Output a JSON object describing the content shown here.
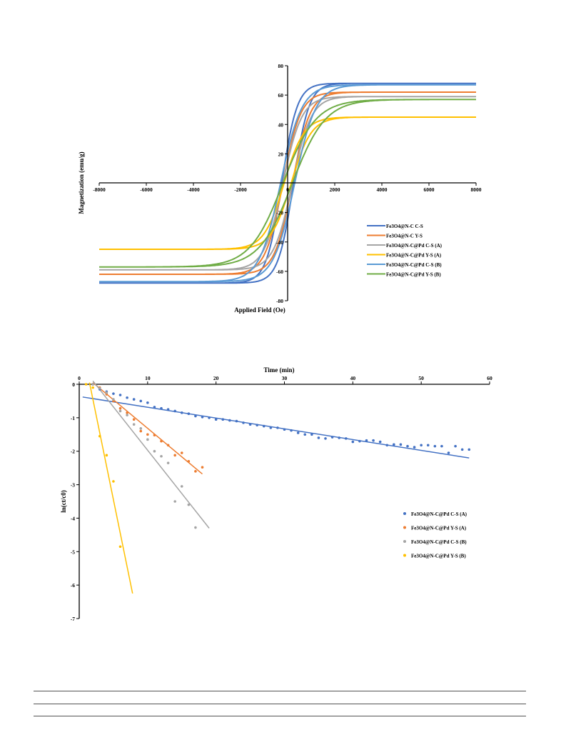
{
  "chart_data": [
    {
      "type": "line",
      "title": "",
      "xlabel": "Applied Field (Oe)",
      "ylabel": "Magnetization (emu/g)",
      "xlim": [
        -8000,
        8000
      ],
      "ylim": [
        -80,
        80
      ],
      "x_ticks": [
        "-8000",
        "-6000",
        "-4000",
        "-2000",
        "0",
        "2000",
        "4000",
        "6000",
        "8000"
      ],
      "y_ticks": [
        "80",
        "60",
        "40",
        "20",
        "-20",
        "-40",
        "-60",
        "-80"
      ],
      "legend_position": "bottom-right",
      "series": [
        {
          "name": "Fe3O4@N-C C-S",
          "color": "#4472c4",
          "ms": 68,
          "coercivity": 250,
          "width": 650
        },
        {
          "name": "Fe3O4@N-C Y-S",
          "color": "#ed7d31",
          "ms": 62,
          "coercivity": 200,
          "width": 750
        },
        {
          "name": "Fe3O4@N-C@Pd C-S (A)",
          "color": "#a5a5a5",
          "ms": 59,
          "coercivity": 200,
          "width": 800
        },
        {
          "name": "Fe3O4@N-C@Pd Y-S (A)",
          "color": "#ffc000",
          "ms": 45,
          "coercivity": 150,
          "width": 850
        },
        {
          "name": "Fe3O4@N-C@Pd C-S (B)",
          "color": "#5b9bd5",
          "ms": 67,
          "coercivity": 300,
          "width": 900
        },
        {
          "name": "Fe3O4@N-C@Pd Y-S (B)",
          "color": "#70ad47",
          "ms": 57,
          "coercivity": 200,
          "width": 1400
        }
      ]
    },
    {
      "type": "scatter",
      "title": "",
      "xlabel": "Time (min)",
      "ylabel": "ln(ct/c0)",
      "xlim": [
        0,
        60
      ],
      "ylim": [
        -7,
        0
      ],
      "x_ticks": [
        "0",
        "10",
        "20",
        "30",
        "40",
        "50",
        "60"
      ],
      "y_ticks": [
        "0",
        "-1",
        "-2",
        "-3",
        "-4",
        "-5",
        "-6",
        "-7"
      ],
      "legend_position": "right",
      "series": [
        {
          "name": "Fe3O4@N-C@Pd C-S (A)",
          "color": "#4472c4",
          "points": [
            [
              2,
              0
            ],
            [
              3,
              -0.15
            ],
            [
              4,
              -0.22
            ],
            [
              5,
              -0.28
            ],
            [
              6,
              -0.32
            ],
            [
              7,
              -0.4
            ],
            [
              8,
              -0.45
            ],
            [
              9,
              -0.5
            ],
            [
              10,
              -0.55
            ],
            [
              11,
              -0.68
            ],
            [
              12,
              -0.72
            ],
            [
              13,
              -0.75
            ],
            [
              14,
              -0.8
            ],
            [
              15,
              -0.85
            ],
            [
              16,
              -0.88
            ],
            [
              17,
              -0.95
            ],
            [
              18,
              -0.98
            ],
            [
              19,
              -1.0
            ],
            [
              20,
              -1.05
            ],
            [
              21,
              -1.05
            ],
            [
              22,
              -1.08
            ],
            [
              23,
              -1.1
            ],
            [
              24,
              -1.15
            ],
            [
              25,
              -1.2
            ],
            [
              26,
              -1.22
            ],
            [
              27,
              -1.25
            ],
            [
              28,
              -1.3
            ],
            [
              29,
              -1.3
            ],
            [
              30,
              -1.35
            ],
            [
              31,
              -1.38
            ],
            [
              32,
              -1.45
            ],
            [
              33,
              -1.5
            ],
            [
              34,
              -1.5
            ],
            [
              35,
              -1.6
            ],
            [
              36,
              -1.62
            ],
            [
              37,
              -1.58
            ],
            [
              38,
              -1.6
            ],
            [
              39,
              -1.62
            ],
            [
              40,
              -1.72
            ],
            [
              41,
              -1.7
            ],
            [
              42,
              -1.68
            ],
            [
              43,
              -1.68
            ],
            [
              44,
              -1.72
            ],
            [
              45,
              -1.82
            ],
            [
              46,
              -1.8
            ],
            [
              47,
              -1.8
            ],
            [
              48,
              -1.85
            ],
            [
              49,
              -1.88
            ],
            [
              50,
              -1.82
            ],
            [
              51,
              -1.82
            ],
            [
              52,
              -1.85
            ],
            [
              53,
              -1.85
            ],
            [
              54,
              -2.05
            ],
            [
              55,
              -1.85
            ],
            [
              56,
              -1.95
            ],
            [
              57,
              -1.95
            ]
          ],
          "fit": [
            [
              0.5,
              -0.38
            ],
            [
              57,
              -2.2
            ]
          ]
        },
        {
          "name": "Fe3O4@N-C@Pd Y-S (A)",
          "color": "#ed7d31",
          "points": [
            [
              2,
              0
            ],
            [
              3,
              -0.1
            ],
            [
              4,
              -0.3
            ],
            [
              5,
              -0.5
            ],
            [
              6,
              -0.72
            ],
            [
              7,
              -0.85
            ],
            [
              8,
              -1.05
            ],
            [
              9,
              -1.4
            ],
            [
              10,
              -1.5
            ],
            [
              11,
              -1.52
            ],
            [
              12,
              -1.7
            ],
            [
              13,
              -1.82
            ],
            [
              14,
              -2.12
            ],
            [
              15,
              -2.05
            ],
            [
              16,
              -2.3
            ],
            [
              17,
              -2.6
            ],
            [
              18,
              -2.48
            ]
          ],
          "fit": [
            [
              2,
              0.05
            ],
            [
              18,
              -2.68
            ]
          ]
        },
        {
          "name": "Fe3O4@N-C@Pd C-S (B)",
          "color": "#a5a5a5",
          "points": [
            [
              2,
              0
            ],
            [
              3,
              -0.12
            ],
            [
              4,
              -0.25
            ],
            [
              5,
              -0.45
            ],
            [
              6,
              -0.8
            ],
            [
              7,
              -0.92
            ],
            [
              8,
              -1.2
            ],
            [
              9,
              -1.32
            ],
            [
              10,
              -1.65
            ],
            [
              11,
              -2.0
            ],
            [
              12,
              -2.15
            ],
            [
              13,
              -2.35
            ],
            [
              14,
              -3.5
            ],
            [
              15,
              -3.05
            ],
            [
              16,
              -3.6
            ],
            [
              17,
              -4.28
            ]
          ],
          "fit": [
            [
              2,
              0.1
            ],
            [
              19,
              -4.3
            ]
          ]
        },
        {
          "name": "Fe3O4@N-C@Pd Y-S (B)",
          "color": "#ffc000",
          "points": [
            [
              1,
              0
            ],
            [
              2,
              -0.1
            ],
            [
              3,
              -1.55
            ],
            [
              4,
              -2.12
            ],
            [
              5,
              -2.9
            ],
            [
              6,
              -4.85
            ]
          ],
          "fit": [
            [
              1.5,
              0.05
            ],
            [
              7.8,
              -6.25
            ]
          ]
        }
      ]
    }
  ]
}
